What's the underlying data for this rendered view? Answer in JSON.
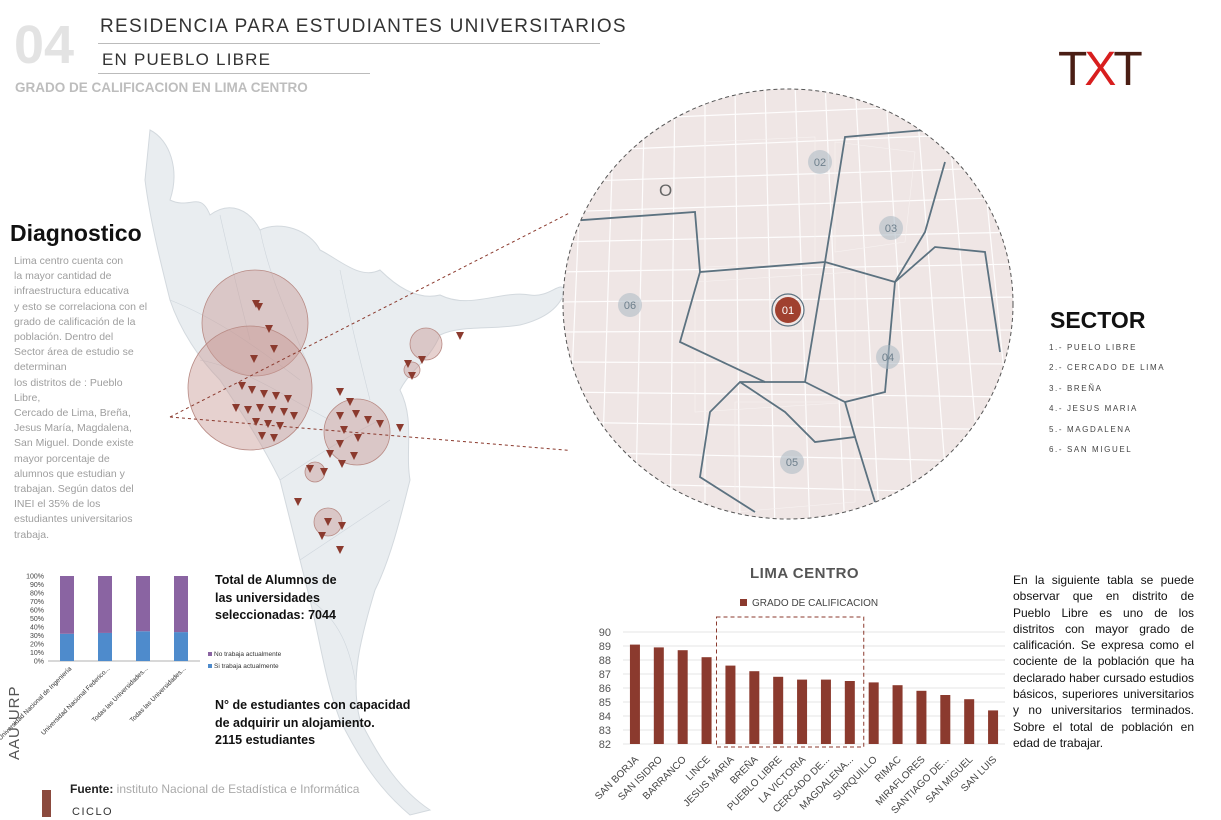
{
  "header": {
    "number": "04",
    "title_line1": "RESIDENCIA PARA ESTUDIANTES UNIVERSITARIOS",
    "title_line2": "EN PUEBLO LIBRE",
    "subtitle": "GRADO DE CALIFICACION EN LIMA CENTRO"
  },
  "logo": {
    "t1": "T",
    "x": "X",
    "t2": "T",
    "color_dark": "#4a1e14",
    "color_red": "#d81e1e"
  },
  "diagnostico": {
    "heading": "Diagnostico",
    "text": "Lima centro cuenta con\nla mayor cantidad de\ninfraestructura educativa\ny esto se correlaciona con el\ngrado de calificación de la\npoblación. Dentro del\nSector área de estudio se\ndeterminan\nlos distritos de : Pueblo\nLibre,\nCercado de Lima, Breña,\nJesus María, Magdalena,\nSan Miguel. Donde existe\nmayor porcentaje de\nalumnos que estudian y\ntrabajan.   Según datos del\nINEI el 35% de los\nestudiantes universitarios\ntrabaja."
  },
  "sector": {
    "heading": "SECTOR",
    "items": [
      "1.- PUELO LIBRE",
      "2.- CERCADO DE LIMA",
      "3.- BREÑA",
      "4.- JESUS MARIA",
      "5.- MAGDALENA",
      "6.- SAN MIGUEL"
    ]
  },
  "map_labels": [
    "01",
    "02",
    "03",
    "04",
    "05",
    "06"
  ],
  "stats": {
    "total": "Total de Alumnos de\nlas universidades\nseleccionadas: 7044",
    "capacity": "N°  de estudiantes con capacidad\nde adquirir un alojamiento.\n2115 estudiantes"
  },
  "footer": {
    "fuente_label": "Fuente:",
    "fuente_text": " instituto Nacional de Estadística e Informática",
    "ciclo": "CICLO",
    "vertical": "AAU-URP"
  },
  "right_text": "En la siguiente tabla se puede observar que en  distrito de Pueblo Libre es uno de los distritos con mayor grado de calificación. Se expresa como el cociente de la población que ha declarado haber cursado estudios básicos, superiores universitarios y no universitarios   terminados. Sobre el total de población en edad de trabajar.",
  "chart_data": [
    {
      "type": "bar",
      "title": "LIMA CENTRO",
      "series": [
        {
          "name": "GRADO DE CALIFICACION",
          "values": [
            89.1,
            88.9,
            88.7,
            88.2,
            87.6,
            87.2,
            86.8,
            86.6,
            86.6,
            86.5,
            86.4,
            86.2,
            85.8,
            85.5,
            85.2,
            84.4
          ]
        }
      ],
      "categories": [
        "SAN BORJA",
        "SAN ISIDRO",
        "BARRANCO",
        "LINCE",
        "JESUS MARIA",
        "BREÑA",
        "PUEBLO LIBRE",
        "LA VICTORIA",
        "CERCADO DE...",
        "MAGDALENA...",
        "SURQUILLO",
        "RIMAC",
        "MIRAFLORES",
        "SANTIAGO DE...",
        "SAN MIGUEL",
        "SAN LUIS"
      ],
      "ylim": [
        82,
        90
      ],
      "yticks": [
        "82",
        "83",
        "84",
        "85",
        "86",
        "87",
        "88",
        "89",
        "90"
      ],
      "grid": true,
      "color": "#8b3a2e",
      "legend": "top"
    },
    {
      "type": "bar",
      "stacked": true,
      "categories": [
        "Universidad Nacional de Ingeniería",
        "Universidad Nacional Federico...",
        "Todas las Universidades...",
        "Todas las Universidades..."
      ],
      "series": [
        {
          "name": "No trabaja actualmente",
          "values": [
            68,
            67,
            65,
            66
          ],
          "color": "#8a64a2"
        },
        {
          "name": "Si trabaja actualmente",
          "values": [
            32,
            33,
            35,
            34
          ],
          "color": "#4e8bcc"
        }
      ],
      "ylim": [
        0,
        100
      ],
      "yticks": [
        "0%",
        "10%",
        "20%",
        "30%",
        "40%",
        "50%",
        "60%",
        "70%",
        "80%",
        "90%",
        "100%"
      ]
    }
  ]
}
